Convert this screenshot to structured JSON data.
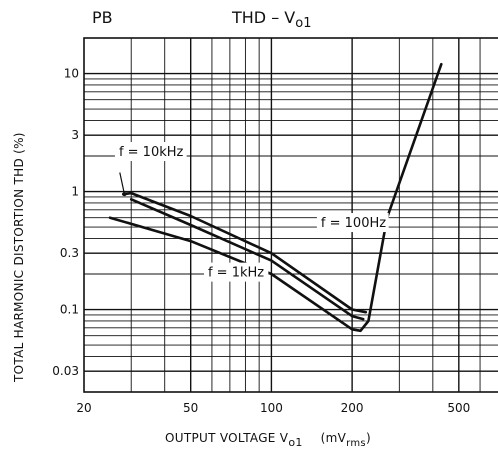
{
  "chart_data": {
    "type": "line",
    "corner_label": "PB",
    "title": {
      "main": "THD  –  V",
      "sub": "o1"
    },
    "xlabel": {
      "main": "OUTPUT VOLTAGE   V",
      "sub": "o1",
      "unit_pre": "(mV",
      "unit_sub": "rms",
      "unit_post": ")"
    },
    "ylabel": "TOTAL HARMONIC DISTORTION   THD    (%)",
    "x_scale": "log",
    "y_scale": "log",
    "xlim": [
      20,
      700
    ],
    "ylim": [
      0.02,
      20
    ],
    "x_ticks": [
      {
        "value": 20,
        "label": "20"
      },
      {
        "value": 50,
        "label": "50"
      },
      {
        "value": 100,
        "label": "100"
      },
      {
        "value": 200,
        "label": "200"
      },
      {
        "value": 500,
        "label": "500"
      }
    ],
    "y_ticks": [
      {
        "value": 10,
        "label": "10"
      },
      {
        "value": 3,
        "label": "3"
      },
      {
        "value": 1,
        "label": "1"
      },
      {
        "value": 0.3,
        "label": "0.3"
      },
      {
        "value": 0.1,
        "label": "0.1"
      },
      {
        "value": 0.03,
        "label": "0.03"
      }
    ],
    "grid": true,
    "series": [
      {
        "name": "f = 10kHz",
        "x": [
          28,
          30,
          50,
          100,
          200,
          225
        ],
        "y": [
          0.95,
          0.97,
          0.62,
          0.3,
          0.1,
          0.095
        ]
      },
      {
        "name": "f = 100Hz",
        "x": [
          30,
          50,
          100,
          200,
          220
        ],
        "y": [
          0.86,
          0.52,
          0.26,
          0.088,
          0.083
        ]
      },
      {
        "name": "f = 1kHz",
        "x": [
          25,
          50,
          100,
          200,
          215,
          230,
          270,
          430
        ],
        "y": [
          0.6,
          0.38,
          0.2,
          0.068,
          0.066,
          0.08,
          0.6,
          12
        ]
      }
    ],
    "annotations": [
      {
        "text": "f = 10kHz",
        "series": "f = 10kHz"
      },
      {
        "text": "f = 100Hz",
        "series": "f = 100Hz"
      },
      {
        "text": "f = 1kHz",
        "series": "f = 1kHz"
      }
    ]
  }
}
